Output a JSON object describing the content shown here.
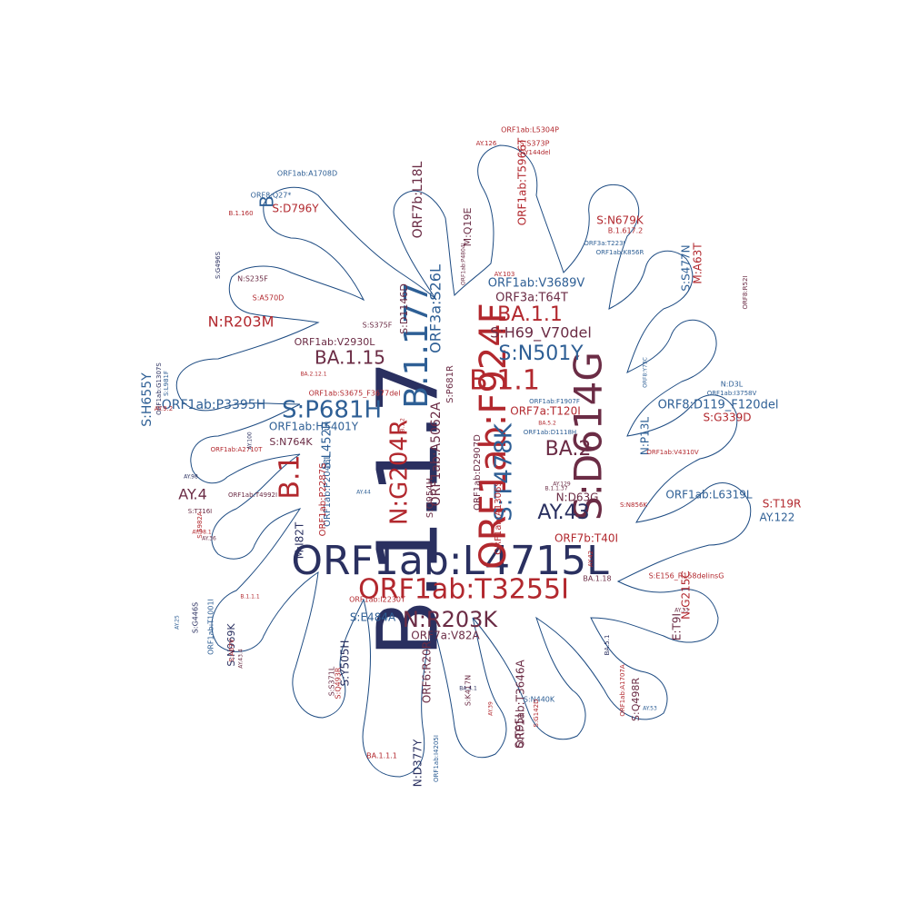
{
  "colors": {
    "outline": "#1d4b82",
    "red": "#b2282e",
    "navy": "#2a3060",
    "blue": "#2e5f95",
    "plum": "#6b2c45",
    "dark": "#3a3a5c"
  },
  "words": [
    "B.1.1.7",
    "ORF1ab:L4715L",
    "S:D614G",
    "ORF1ab:F924F",
    "ORF1ab:T3255I",
    "B.1.177",
    "B.1.1",
    "N:R203K",
    "S:P681H",
    "S:T478K",
    "N:G204R",
    "B.1",
    "BA.1.1",
    "S:N501Y",
    "BA.1.15",
    "AY.43",
    "BA.2",
    "AY.4",
    "S:H69_V70del",
    "N:R203M",
    "ORF3a:S26L",
    "B",
    "ORF7b:L18L",
    "ORF1ab:A5062A",
    "ORF3a:T64T",
    "ORF1ab:V3689V",
    "ORF8:D119_F120del",
    "S:H655Y",
    "ORF1ab:P3395H",
    "ORF1ab:H5401Y",
    "ORF1ab:L6319L",
    "S:N679K",
    "S:S477N",
    "M:A63T",
    "S:D796Y",
    "ORF7a:V82A",
    "S:E484A",
    "N:D377Y",
    "ORF1ab:T3646A",
    "N:G215C",
    "AY.122",
    "S:T19R",
    "M:Q19E",
    "S:Q498R",
    "S:N969K",
    "S:G339D",
    "S:Y505H",
    "N:P13L",
    "M:I82T",
    "ORF1ab:A1306S",
    "ORF7b:T40I",
    "ORF7a:T120I",
    "ORF6:R20R",
    "S:L452R",
    "N:D63G",
    "ORF1ab:D2907D",
    "S:Q954H",
    "ORF1ab:T5966T",
    "ORF1ab:V2930L",
    "S:S375F",
    "ORF1ab:P2046L",
    "ORF1ab:P2287S",
    "S:D1146D",
    "S:N764K",
    "S:P681R",
    "S:T95I",
    "N:S235F",
    "S:A570D",
    "ORF1ab:A1708D",
    "ORF1ab:L5304P",
    "S:S373P",
    "S:Y144del",
    "ORF8:Q27*",
    "E:T9I",
    "ORF1ab:I2230T",
    "S:E156_R158delinsG",
    "ORF1ab:S3675_F3677del",
    "S:N440K",
    "S:K417N",
    "ORF1ab:T4992I",
    "S:T716I",
    "S:S982A",
    "ORF1ab:A2710T",
    "ORF1ab:V4310V",
    "S:N856K",
    "ORF1ab:F1907F",
    "ORF1ab:D1118H",
    "N:D3L",
    "ORF1ab:I3758V",
    "ORF8:Y73C",
    "ORF3a:T223I",
    "ORF1ab:K856R",
    "ORF8:R52I",
    "ORF1ab:P4804L",
    "S:G446S",
    "ORF1ab:T1001I",
    "S:A67V",
    "S:S371L",
    "S:Q493R",
    "ORF1ab:I4205I",
    "S:G142D",
    "ORF1ab:A1707A",
    "S:G496S",
    "S:L981F",
    "ORF1ab:G1307S",
    "B.1.617.2",
    "BA.1.1.1",
    "BA.1.18",
    "AY.103",
    "AY.126",
    "AY.9.2",
    "AY.98",
    "AY.129",
    "BA.2.12.1",
    "BA.5.1",
    "BA.5.2",
    "AY.44",
    "AY.25",
    "AY.53",
    "AY.39",
    "AY.43.4",
    "AY.100",
    "B.1.1.1",
    "B.1.160",
    "B.1.2",
    "AY.42",
    "AY.33",
    "AY.98.1",
    "AY.36",
    "BA.4.1",
    "B.1.1.37"
  ]
}
